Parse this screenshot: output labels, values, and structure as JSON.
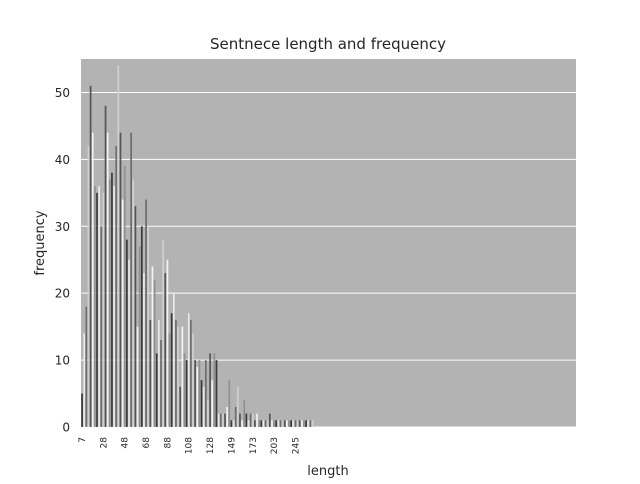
{
  "chart_data": {
    "type": "bar",
    "title": "Sentnece length and frequency",
    "xlabel": "length",
    "ylabel": "frequency",
    "categories": [
      "7",
      null,
      null,
      null,
      null,
      null,
      null,
      null,
      null,
      null,
      "28",
      null,
      null,
      null,
      null,
      null,
      null,
      null,
      null,
      null,
      "48",
      null,
      null,
      null,
      null,
      null,
      null,
      null,
      null,
      null,
      "68",
      null,
      null,
      null,
      null,
      null,
      null,
      null,
      null,
      null,
      "88",
      null,
      null,
      null,
      null,
      null,
      null,
      null,
      null,
      null,
      "108",
      null,
      null,
      null,
      null,
      null,
      null,
      null,
      null,
      null,
      "128",
      null,
      null,
      null,
      null,
      null,
      null,
      null,
      null,
      null,
      "149",
      null,
      null,
      null,
      null,
      null,
      null,
      null,
      null,
      null,
      "173",
      null,
      null,
      null,
      null,
      null,
      null,
      null,
      null,
      null,
      "203",
      null,
      null,
      null,
      null,
      null,
      null,
      null,
      null,
      null,
      "245",
      null,
      null,
      null,
      null,
      null,
      null,
      null,
      null
    ],
    "values": [
      5,
      14,
      18,
      42,
      51,
      44,
      36,
      35,
      36,
      30,
      35,
      48,
      44,
      37,
      38,
      36,
      42,
      54,
      44,
      34,
      39,
      28,
      25,
      44,
      37,
      33,
      15,
      27,
      30,
      23,
      34,
      30,
      16,
      24,
      22,
      11,
      16,
      13,
      28,
      23,
      25,
      14,
      17,
      20,
      16,
      15,
      6,
      15,
      11,
      10,
      17,
      16,
      14,
      10,
      9,
      10,
      7,
      6,
      10,
      4,
      11,
      7,
      11,
      10,
      2,
      2,
      2,
      2,
      3,
      7,
      1,
      1,
      3,
      6,
      2,
      1,
      4,
      2,
      1,
      2,
      2,
      1,
      2,
      1,
      1,
      1,
      1,
      1,
      2,
      1,
      1,
      1,
      1,
      1,
      1,
      1,
      1,
      1,
      1,
      1,
      1,
      1,
      1,
      1,
      1,
      1,
      1,
      1,
      1
    ],
    "colors": [
      "#3a3a3a",
      "#e8e8e8",
      "#6e6e6e",
      "#d0d0d0",
      "#555555",
      "#f2f2f2",
      "#909090"
    ],
    "xlim": [
      -0.5,
      231.5
    ],
    "ylim": [
      0,
      55
    ],
    "yticks": [
      0,
      10,
      20,
      30,
      40,
      50
    ],
    "grid": true
  }
}
